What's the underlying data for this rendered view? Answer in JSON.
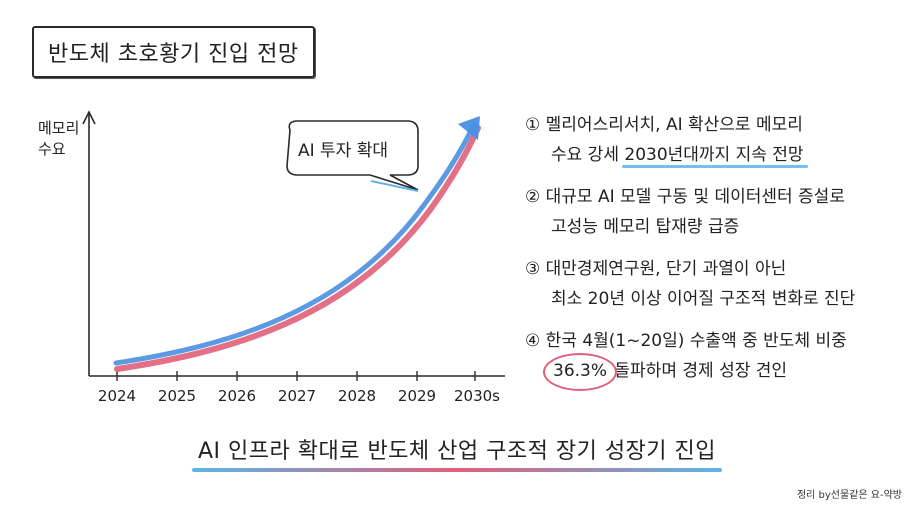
{
  "title": "반도체 초호황기 진입 전망",
  "chart_data": {
    "type": "line",
    "ylabel": [
      "메모리",
      "수요"
    ],
    "x": [
      "2024",
      "2025",
      "2026",
      "2027",
      "2028",
      "2029",
      "2030s"
    ],
    "annotation": "AI 투자 확대",
    "line_colors": [
      "#4a8fe0",
      "#e0607a"
    ]
  },
  "points": [
    {
      "marker": "①",
      "line1": "멜리어스리서치, AI 확산으로 메모리",
      "line2_pre": "수요 강세 ",
      "line2_highlight": "2030년대까지 지속 전망",
      "line2_post": ""
    },
    {
      "marker": "②",
      "line1": "대규모 AI 모델 구동 및 데이터센터 증설로",
      "line2_pre": "고성능 메모리 탑재량 급증",
      "line2_highlight": "",
      "line2_post": ""
    },
    {
      "marker": "③",
      "line1": "대만경제연구원, 단기 과열이 아닌",
      "line2_pre": "최소 20년 이상 이어질 구조적 변화로 진단",
      "line2_highlight": "",
      "line2_post": ""
    },
    {
      "marker": "④",
      "line1": "한국 4월(1~20일) 수출액 중 반도체 비중",
      "line2_circled": "36.3%",
      "line2_post": " 돌파하며 경제 성장 견인"
    }
  ],
  "conclusion": "AI 인프라 확대로 반도체 산업 구조적 장기 성장기 진입",
  "credit": "정리 by선물같은 요-약방"
}
